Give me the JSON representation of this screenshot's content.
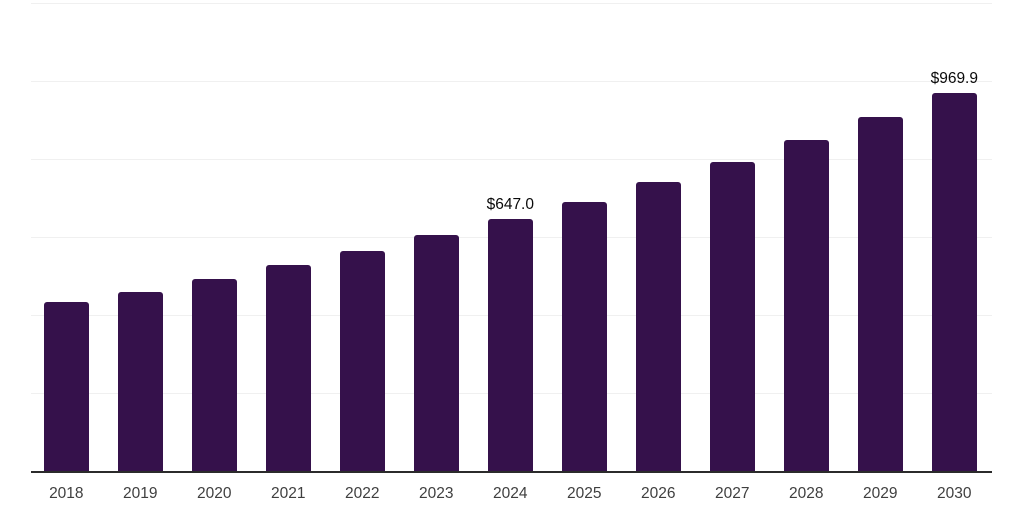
{
  "chart_data": {
    "type": "bar",
    "title": "",
    "xlabel": "",
    "ylabel": "",
    "categories": [
      "2018",
      "2019",
      "2020",
      "2021",
      "2022",
      "2023",
      "2024",
      "2025",
      "2026",
      "2027",
      "2028",
      "2029",
      "2030"
    ],
    "values": [
      433,
      460,
      493,
      528,
      565,
      605,
      647.0,
      690,
      740,
      793,
      848,
      907,
      969.9
    ],
    "data_labels": [
      {
        "category": "2024",
        "text": "$647.0"
      },
      {
        "category": "2030",
        "text": "$969.9"
      }
    ],
    "value_prefix": "$",
    "ylim": [
      0,
      1200
    ],
    "gridline_step": 200,
    "grid": "horizontal",
    "legend": "none"
  },
  "colors": {
    "bar": "#35114B",
    "gridline": "#f0f0f0",
    "axis_line": "#2b2b2b",
    "tick_label": "#3f3f3f",
    "data_label": "#0a0a0a",
    "background": "#ffffff"
  }
}
